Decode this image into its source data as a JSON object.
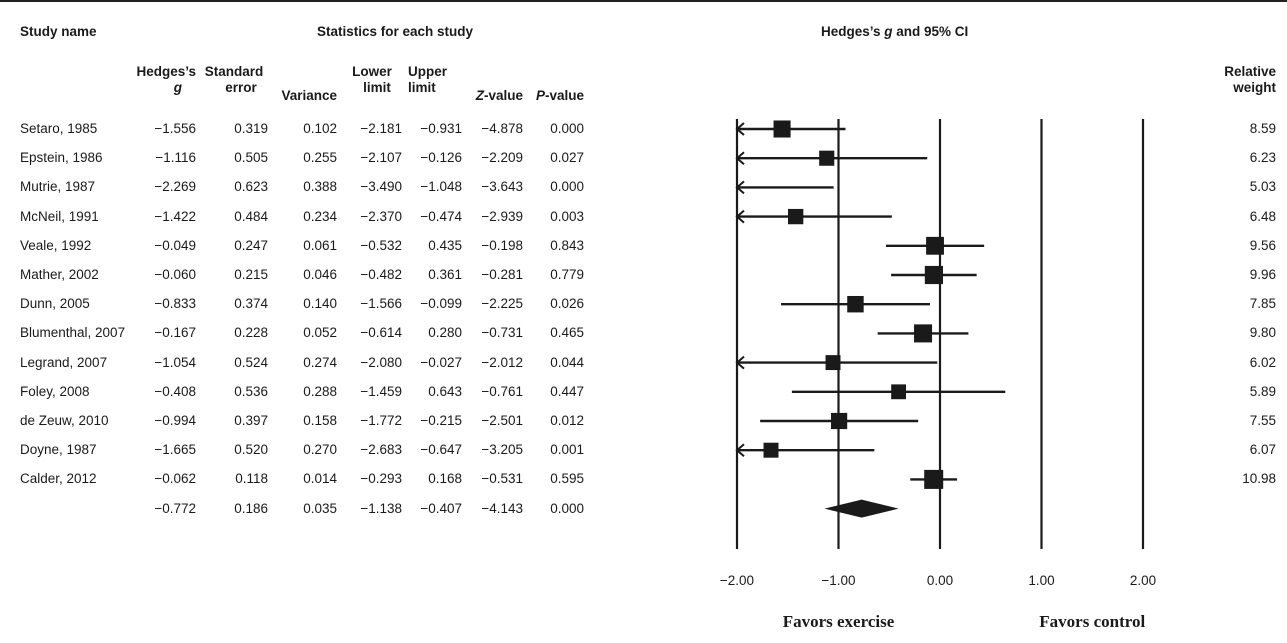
{
  "headers": {
    "study_name": "Study name",
    "stats": "Statistics for each study",
    "plot": "Hedges’s g and 95% CI",
    "plot_pre": "Hedges’s ",
    "plot_g": "g",
    "plot_post": " and 95% CI",
    "hedges_1": "Hedges’s",
    "hedges_2": "g",
    "se_1": "Standard",
    "se_2": "error",
    "variance": "Variance",
    "lower_1": "Lower",
    "lower_2": "limit",
    "upper_1": "Upper",
    "upper_2": "limit",
    "z_i": "Z",
    "z_rest": "-value",
    "p_i": "P",
    "p_rest": "-value",
    "weight_1": "Relative",
    "weight_2": "weight"
  },
  "chart_data": {
    "type": "forest",
    "x_ticks": [
      -2.0,
      -1.0,
      0.0,
      1.0,
      2.0
    ],
    "x_tick_labels": [
      "−2.00",
      "−1.00",
      "0.00",
      "1.00",
      "2.00"
    ],
    "xlim": [
      -2.0,
      2.0
    ],
    "favor_left": "Favors exercise",
    "favor_right": "Favors control",
    "studies": [
      {
        "name": "Setaro, 1985",
        "g": -1.556,
        "g_label": "−1.556",
        "se": "0.319",
        "var": "0.102",
        "lower": -2.181,
        "lower_label": "−2.181",
        "upper": -0.931,
        "upper_label": "−0.931",
        "z": "−4.878",
        "p": "0.000",
        "weight": 8.59,
        "weight_label": "8.59"
      },
      {
        "name": "Epstein, 1986",
        "g": -1.116,
        "g_label": "−1.116",
        "se": "0.505",
        "var": "0.255",
        "lower": -2.107,
        "lower_label": "−2.107",
        "upper": -0.126,
        "upper_label": "−0.126",
        "z": "−2.209",
        "p": "0.027",
        "weight": 6.23,
        "weight_label": "6.23"
      },
      {
        "name": "Mutrie, 1987",
        "g": -2.269,
        "g_label": "−2.269",
        "se": "0.623",
        "var": "0.388",
        "lower": -3.49,
        "lower_label": "−3.490",
        "upper": -1.048,
        "upper_label": "−1.048",
        "z": "−3.643",
        "p": "0.000",
        "weight": 5.03,
        "weight_label": "5.03"
      },
      {
        "name": "McNeil, 1991",
        "g": -1.422,
        "g_label": "−1.422",
        "se": "0.484",
        "var": "0.234",
        "lower": -2.37,
        "lower_label": "−2.370",
        "upper": -0.474,
        "upper_label": "−0.474",
        "z": "−2.939",
        "p": "0.003",
        "weight": 6.48,
        "weight_label": "6.48"
      },
      {
        "name": "Veale, 1992",
        "g": -0.049,
        "g_label": "−0.049",
        "se": "0.247",
        "var": "0.061",
        "lower": -0.532,
        "lower_label": "−0.532",
        "upper": 0.435,
        "upper_label": "0.435",
        "z": "−0.198",
        "p": "0.843",
        "weight": 9.56,
        "weight_label": "9.56"
      },
      {
        "name": "Mather, 2002",
        "g": -0.06,
        "g_label": "−0.060",
        "se": "0.215",
        "var": "0.046",
        "lower": -0.482,
        "lower_label": "−0.482",
        "upper": 0.361,
        "upper_label": "0.361",
        "z": "−0.281",
        "p": "0.779",
        "weight": 9.96,
        "weight_label": "9.96"
      },
      {
        "name": "Dunn, 2005",
        "g": -0.833,
        "g_label": "−0.833",
        "se": "0.374",
        "var": "0.140",
        "lower": -1.566,
        "lower_label": "−1.566",
        "upper": -0.099,
        "upper_label": "−0.099",
        "z": "−2.225",
        "p": "0.026",
        "weight": 7.85,
        "weight_label": "7.85"
      },
      {
        "name": "Blumenthal, 2007",
        "g": -0.167,
        "g_label": "−0.167",
        "se": "0.228",
        "var": "0.052",
        "lower": -0.614,
        "lower_label": "−0.614",
        "upper": 0.28,
        "upper_label": "0.280",
        "z": "−0.731",
        "p": "0.465",
        "weight": 9.8,
        "weight_label": "9.80"
      },
      {
        "name": "Legrand, 2007",
        "g": -1.054,
        "g_label": "−1.054",
        "se": "0.524",
        "var": "0.274",
        "lower": -2.08,
        "lower_label": "−2.080",
        "upper": -0.027,
        "upper_label": "−0.027",
        "z": "−2.012",
        "p": "0.044",
        "weight": 6.02,
        "weight_label": "6.02"
      },
      {
        "name": "Foley, 2008",
        "g": -0.408,
        "g_label": "−0.408",
        "se": "0.536",
        "var": "0.288",
        "lower": -1.459,
        "lower_label": "−1.459",
        "upper": 0.643,
        "upper_label": "0.643",
        "z": "−0.761",
        "p": "0.447",
        "weight": 5.89,
        "weight_label": "5.89"
      },
      {
        "name": "de Zeuw, 2010",
        "g": -0.994,
        "g_label": "−0.994",
        "se": "0.397",
        "var": "0.158",
        "lower": -1.772,
        "lower_label": "−1.772",
        "upper": -0.215,
        "upper_label": "−0.215",
        "z": "−2.501",
        "p": "0.012",
        "weight": 7.55,
        "weight_label": "7.55"
      },
      {
        "name": "Doyne, 1987",
        "g": -1.665,
        "g_label": "−1.665",
        "se": "0.520",
        "var": "0.270",
        "lower": -2.683,
        "lower_label": "−2.683",
        "upper": -0.647,
        "upper_label": "−0.647",
        "z": "−3.205",
        "p": "0.001",
        "weight": 6.07,
        "weight_label": "6.07"
      },
      {
        "name": "Calder, 2012",
        "g": -0.062,
        "g_label": "−0.062",
        "se": "0.118",
        "var": "0.014",
        "lower": -0.293,
        "lower_label": "−0.293",
        "upper": 0.168,
        "upper_label": "0.168",
        "z": "−0.531",
        "p": "0.595",
        "weight": 10.98,
        "weight_label": "10.98"
      }
    ],
    "summary": {
      "g": -0.772,
      "g_label": "−0.772",
      "se": "0.186",
      "var": "0.035",
      "lower": -1.138,
      "lower_label": "−1.138",
      "upper": -0.407,
      "upper_label": "−0.407",
      "z": "−4.143",
      "p": "0.000"
    }
  }
}
